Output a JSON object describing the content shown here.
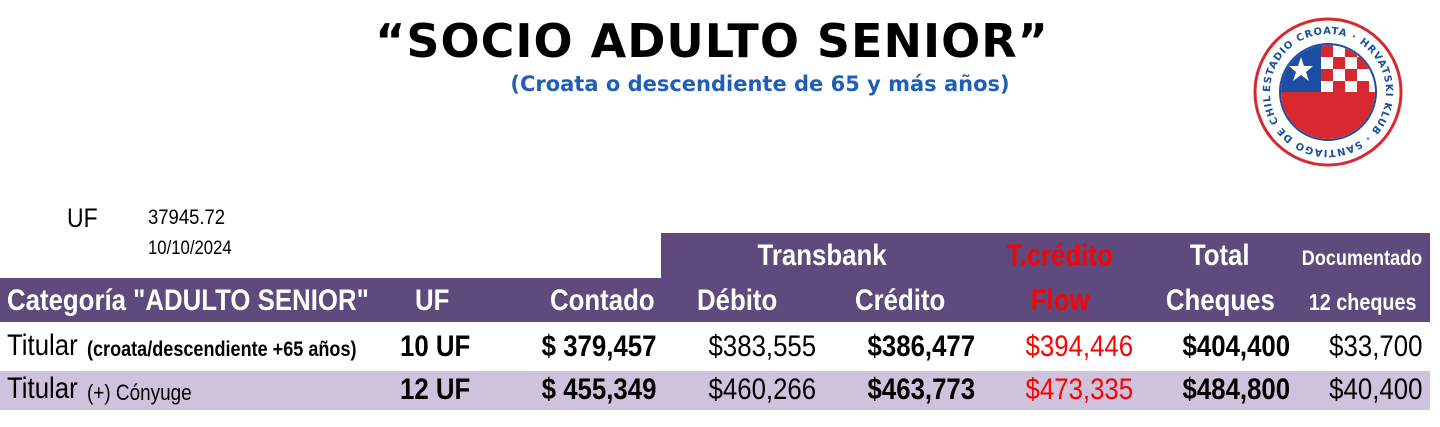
{
  "title": "“SOCIO  ADULTO   SENIOR”",
  "subtitle": "(Croata o descendiente de 65 y más  años)",
  "logo": {
    "text": "ESTADIO CROATA · HRVATSKI KLUB · SANTIAGO DE CHILE",
    "colors": {
      "red": "#d7282f",
      "blue": "#1c4fa1",
      "white": "#ffffff"
    }
  },
  "uf": {
    "label": "UF",
    "value": "37945.72",
    "date": "10/10/2024"
  },
  "header": {
    "transbank": "Transbank",
    "tcredito": "T.crédito",
    "total": "Total",
    "documentado": "Documentado",
    "categoria": "Categoría  \"ADULTO SENIOR\"",
    "uf": "UF",
    "contado": "Contado",
    "debito": "Débito",
    "credito": "Crédito",
    "flow": "Flow",
    "cheques": "Cheques",
    "doce_cheques": "12 cheques"
  },
  "rows": [
    {
      "titular": "Titular",
      "detalle": "(croata/descendiente +65 años)",
      "uf": "10  UF",
      "contado": "$ 379,457",
      "debito": "$383,555",
      "credito": "$386,477",
      "flow": "$394,446",
      "cheques": "$404,400",
      "documentado": "$33,700"
    },
    {
      "titular": "Titular",
      "detalle": "(+) Cónyuge",
      "uf": "12  UF",
      "contado": "$ 455,349",
      "debito": "$460,266",
      "credito": "$463,773",
      "flow": "$473,335",
      "cheques": "$484,800",
      "documentado": "$40,400"
    }
  ],
  "colors": {
    "header_bg": "#5e4a7c",
    "row_alt_bg": "#cdc3dd",
    "subtitle": "#1f5fb8",
    "flow_text": "#ff0000"
  }
}
